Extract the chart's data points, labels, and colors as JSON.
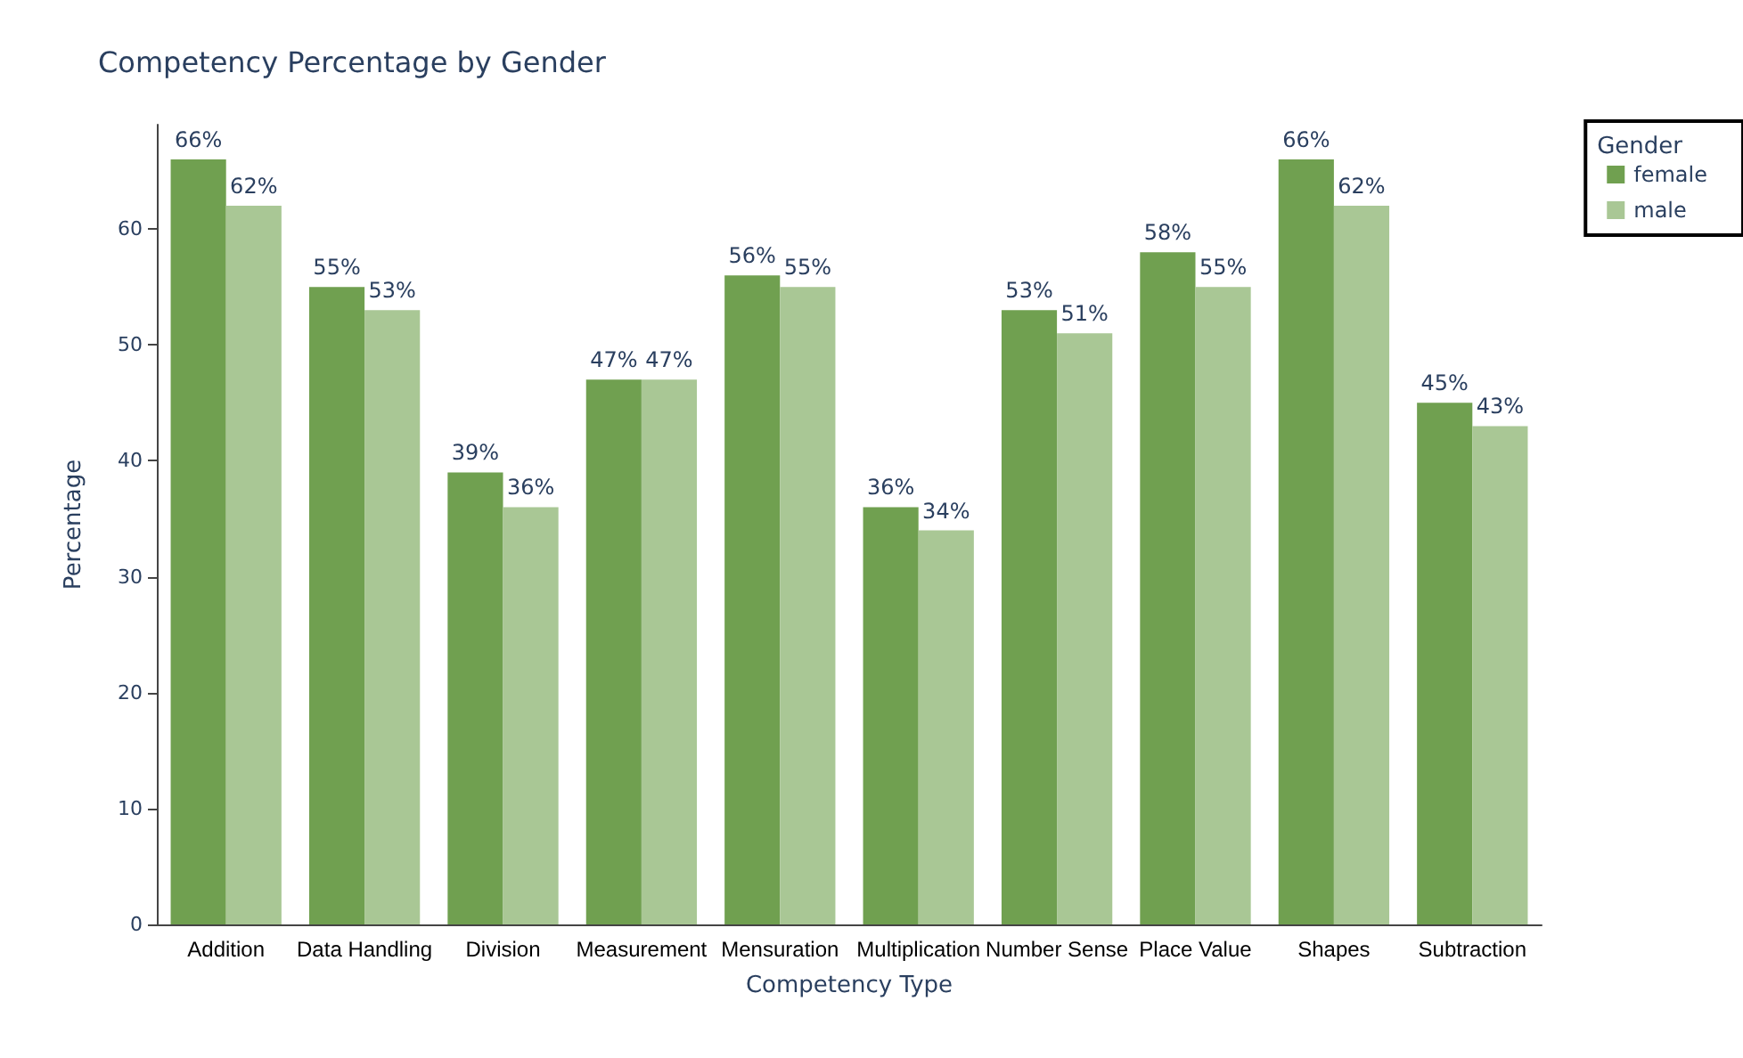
{
  "chart_data": {
    "type": "bar",
    "title": "Competency Percentage by Gender",
    "xlabel": "Competency Type",
    "ylabel": "Percentage",
    "legend_title": "Gender",
    "categories": [
      "Addition",
      "Data Handling",
      "Division",
      "Measurement",
      "Mensuration",
      "Multiplication",
      "Number Sense",
      "Place Value",
      "Shapes",
      "Subtraction"
    ],
    "series": [
      {
        "name": "female",
        "color": "#70a050",
        "values": [
          66,
          55,
          39,
          47,
          56,
          36,
          53,
          58,
          66,
          45
        ],
        "value_labels": [
          "66%",
          "55%",
          "39%",
          "47%",
          "56%",
          "36%",
          "53%",
          "58%",
          "66%",
          "45%"
        ]
      },
      {
        "name": "male",
        "color": "#a9c795",
        "values": [
          62,
          53,
          36,
          47,
          55,
          34,
          51,
          55,
          62,
          43
        ],
        "value_labels": [
          "62%",
          "53%",
          "36%",
          "47%",
          "55%",
          "34%",
          "51%",
          "55%",
          "62%",
          "43%"
        ]
      }
    ],
    "ylim": [
      0,
      69
    ],
    "yticks": [
      0,
      10,
      20,
      30,
      40,
      50,
      60
    ],
    "grid": false,
    "legend": "top right"
  }
}
